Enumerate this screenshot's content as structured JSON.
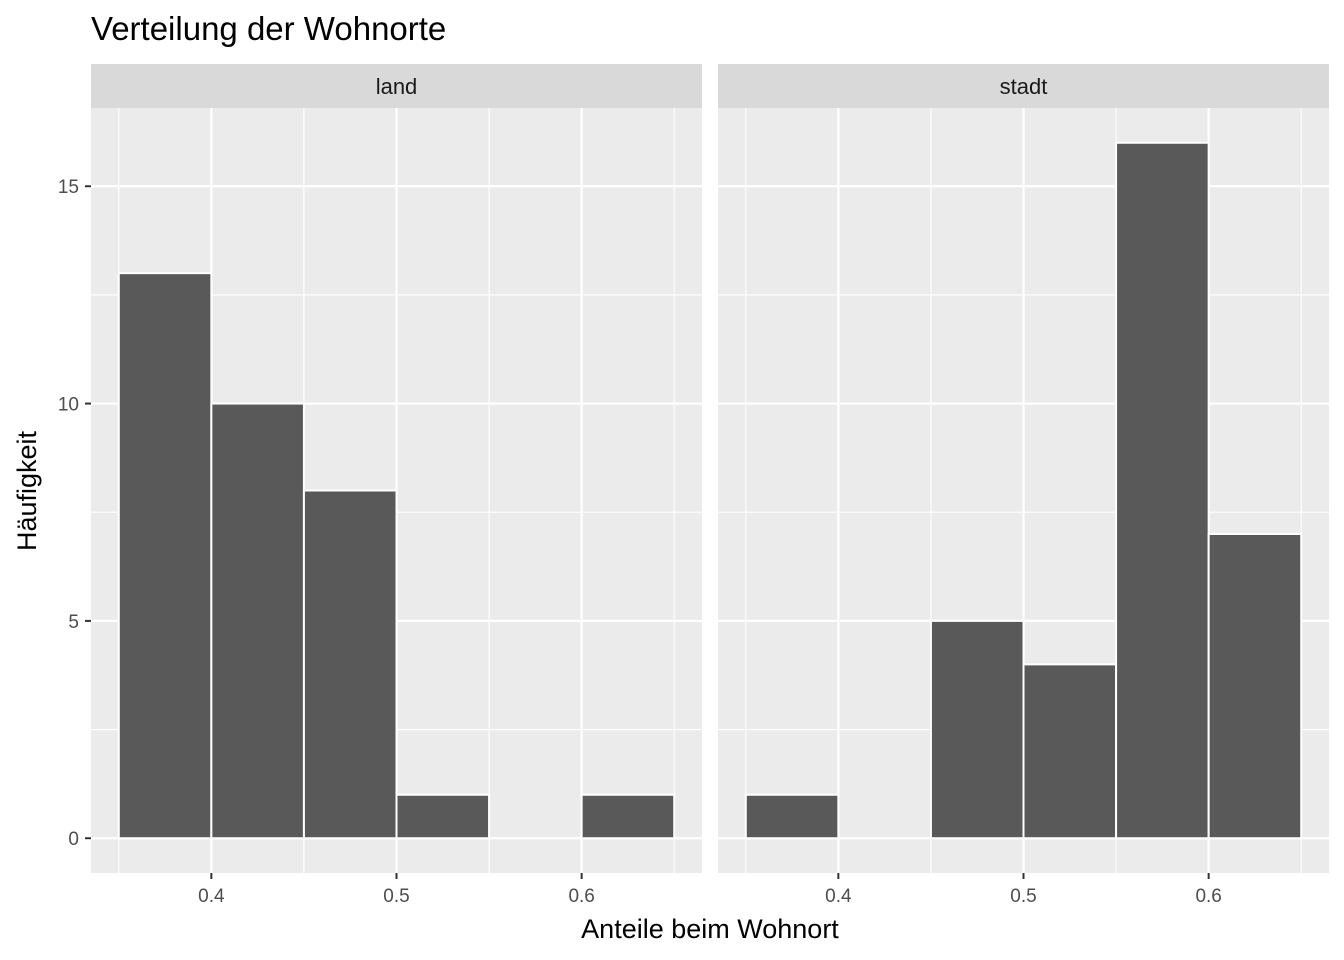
{
  "chart_data": {
    "type": "bar",
    "title": "Verteilung der Wohnorte",
    "xlabel": "Anteile beim Wohnort",
    "ylabel": "Häufigkeit",
    "xlim": [
      0.335,
      0.665
    ],
    "ylim": [
      -0.8,
      16.8
    ],
    "binwidth": 0.05,
    "x_ticks": [
      0.4,
      0.5,
      0.6
    ],
    "x_tick_labels": [
      "0.4",
      "0.5",
      "0.6"
    ],
    "y_ticks": [
      0,
      5,
      10,
      15
    ],
    "y_tick_labels": [
      "0",
      "5",
      "10",
      "15"
    ],
    "grid": true,
    "panels": [
      {
        "name": "land",
        "bins": [
          {
            "x0": 0.35,
            "x1": 0.4,
            "count": 13
          },
          {
            "x0": 0.4,
            "x1": 0.45,
            "count": 10
          },
          {
            "x0": 0.45,
            "x1": 0.5,
            "count": 8
          },
          {
            "x0": 0.5,
            "x1": 0.55,
            "count": 1
          },
          {
            "x0": 0.55,
            "x1": 0.6,
            "count": 0
          },
          {
            "x0": 0.6,
            "x1": 0.65,
            "count": 1
          }
        ]
      },
      {
        "name": "stadt",
        "bins": [
          {
            "x0": 0.35,
            "x1": 0.4,
            "count": 1
          },
          {
            "x0": 0.4,
            "x1": 0.45,
            "count": 0
          },
          {
            "x0": 0.45,
            "x1": 0.5,
            "count": 5
          },
          {
            "x0": 0.5,
            "x1": 0.55,
            "count": 4
          },
          {
            "x0": 0.55,
            "x1": 0.6,
            "count": 16
          },
          {
            "x0": 0.6,
            "x1": 0.65,
            "count": 7
          }
        ]
      }
    ],
    "colors": {
      "bar_fill": "#595959",
      "bar_outline": "#ffffff",
      "panel_background": "#ebebeb",
      "grid_line": "#ffffff",
      "strip_background": "#d9d9d9",
      "tick_text": "#4d4d4d",
      "tick_mark": "#333333"
    }
  }
}
